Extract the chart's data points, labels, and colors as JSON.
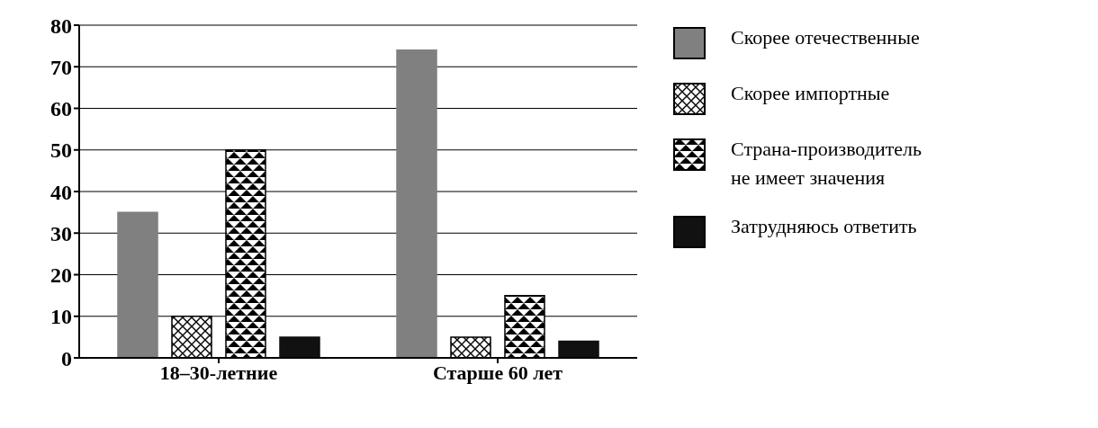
{
  "chart_data": {
    "type": "bar",
    "categories": [
      "18–30-летние",
      "Старше 60 лет"
    ],
    "series": [
      {
        "name": "Скорее отечественные",
        "color": "#808080",
        "values": [
          35,
          74
        ]
      },
      {
        "name": "Скорее импортные",
        "color": "#000000",
        "values": [
          10,
          5
        ]
      },
      {
        "name": "Страна-производитель не имеет значения",
        "color": "#000000",
        "values": [
          50,
          15
        ]
      },
      {
        "name": "Затрудняюсь ответить",
        "color": "#111111",
        "values": [
          5,
          4
        ]
      }
    ],
    "ylim": [
      0,
      80
    ],
    "yticks": [
      0,
      10,
      20,
      30,
      40,
      50,
      60,
      70,
      80
    ],
    "grid": "y",
    "legend": "right"
  }
}
